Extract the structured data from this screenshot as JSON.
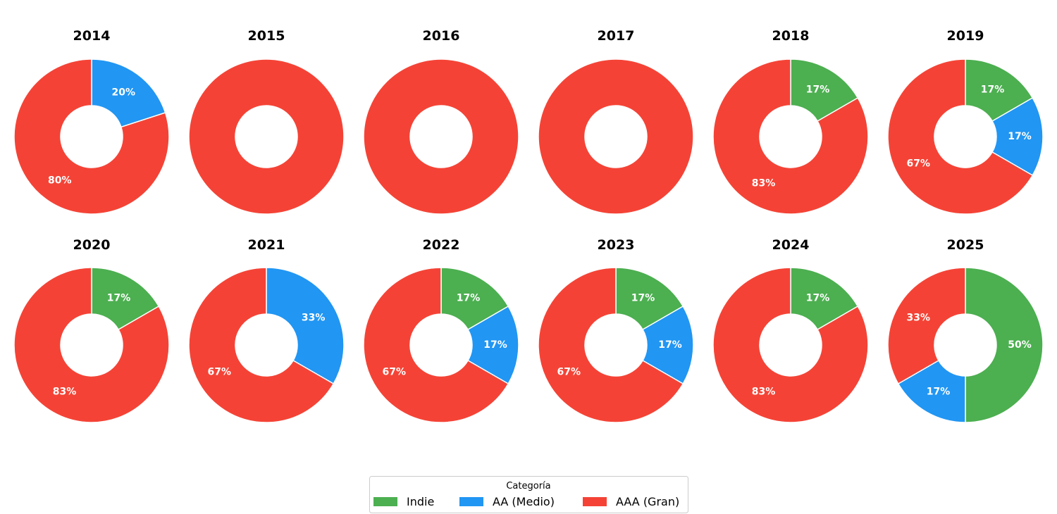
{
  "chart_data": {
    "type": "pie",
    "subtype": "donut",
    "legend": {
      "title": "Categoría",
      "placement": "bottom-center",
      "entries": [
        "Indie",
        "AA (Medio)",
        "AAA (Gran)"
      ]
    },
    "colors": {
      "Indie": "#4caf50",
      "AA (Medio)": "#2196f3",
      "AAA (Gran)": "#f44336"
    },
    "categories": [
      "Indie",
      "AA (Medio)",
      "AAA (Gran)"
    ],
    "panels": [
      {
        "title": "2014",
        "values": [
          0,
          1,
          4
        ],
        "labels": [
          "",
          "20%",
          "80%"
        ]
      },
      {
        "title": "2015",
        "values": [
          0,
          0,
          6
        ],
        "labels": [
          "",
          "",
          ""
        ]
      },
      {
        "title": "2016",
        "values": [
          0,
          0,
          6
        ],
        "labels": [
          "",
          "",
          ""
        ]
      },
      {
        "title": "2017",
        "values": [
          0,
          0,
          6
        ],
        "labels": [
          "",
          "",
          ""
        ]
      },
      {
        "title": "2018",
        "values": [
          1,
          0,
          5
        ],
        "labels": [
          "17%",
          "",
          "83%"
        ]
      },
      {
        "title": "2019",
        "values": [
          1,
          1,
          4
        ],
        "labels": [
          "17%",
          "17%",
          "67%"
        ]
      },
      {
        "title": "2020",
        "values": [
          1,
          0,
          5
        ],
        "labels": [
          "17%",
          "",
          "83%"
        ]
      },
      {
        "title": "2021",
        "values": [
          0,
          2,
          4
        ],
        "labels": [
          "",
          "33%",
          "67%"
        ]
      },
      {
        "title": "2022",
        "values": [
          1,
          1,
          4
        ],
        "labels": [
          "17%",
          "17%",
          "67%"
        ]
      },
      {
        "title": "2023",
        "values": [
          1,
          1,
          4
        ],
        "labels": [
          "17%",
          "17%",
          "67%"
        ]
      },
      {
        "title": "2024",
        "values": [
          1,
          0,
          5
        ],
        "labels": [
          "17%",
          "",
          "83%"
        ]
      },
      {
        "title": "2025",
        "values": [
          3,
          1,
          2
        ],
        "labels": [
          "50%",
          "17%",
          "33%"
        ]
      }
    ]
  }
}
